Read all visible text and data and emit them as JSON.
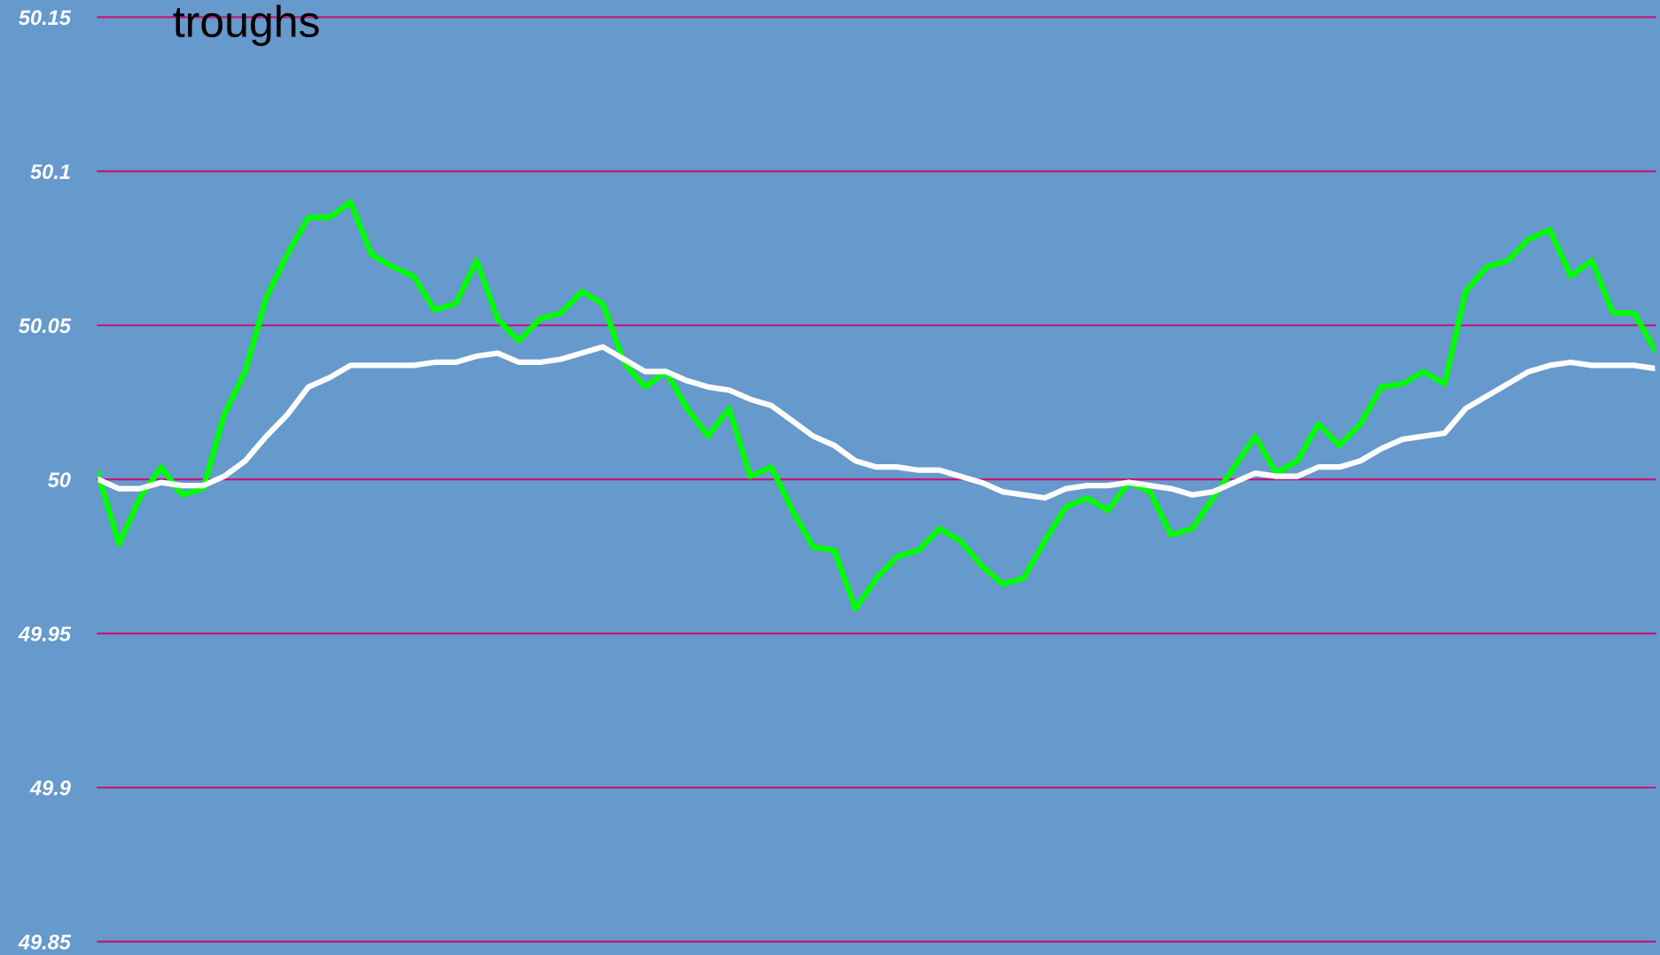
{
  "chart_data": {
    "type": "line",
    "categories": [
      null,
      null,
      null,
      null,
      null,
      null,
      null,
      null,
      null,
      null,
      null,
      null,
      null,
      null,
      null,
      null,
      null,
      null,
      null,
      null,
      null,
      null,
      null,
      null,
      null,
      null,
      null,
      null,
      null,
      null,
      null,
      null,
      null,
      null,
      null,
      null,
      null,
      null,
      null,
      null,
      null,
      null,
      null,
      null,
      null,
      null,
      null,
      null,
      null,
      null,
      null,
      null,
      null,
      null,
      null,
      null,
      null,
      null,
      null,
      null,
      null,
      null,
      null,
      null,
      null,
      null,
      null,
      null,
      null,
      null,
      null,
      null,
      null,
      null,
      null
    ],
    "series": [
      {
        "color": "#00ff00",
        "values": [
          50.002,
          49.979,
          49.994,
          50.004,
          49.995,
          49.997,
          50.021,
          50.035,
          50.059,
          50.073,
          50.085,
          50.085,
          50.09,
          50.073,
          50.069,
          50.066,
          50.055,
          50.057,
          50.071,
          50.052,
          50.045,
          50.052,
          50.054,
          50.061,
          50.057,
          50.038,
          50.03,
          50.035,
          50.023,
          50.014,
          50.023,
          50.001,
          50.004,
          49.99,
          49.978,
          49.977,
          49.958,
          49.968,
          49.975,
          49.977,
          49.984,
          49.98,
          49.972,
          49.966,
          49.968,
          49.98,
          49.991,
          49.994,
          49.99,
          49.999,
          49.996,
          49.982,
          49.984,
          49.994,
          50.004,
          50.014,
          50.002,
          50.006,
          50.018,
          50.011,
          50.018,
          50.03,
          50.031,
          50.035,
          50.031,
          50.061,
          50.069,
          50.071,
          50.078,
          50.081,
          50.066,
          50.071,
          50.054,
          50.054,
          50.042
        ]
      },
      {
        "color": "#ffffff",
        "values": [
          50.0,
          49.997,
          49.997,
          49.999,
          49.998,
          49.998,
          50.001,
          50.006,
          50.014,
          50.021,
          50.03,
          50.033,
          50.037,
          50.037,
          50.037,
          50.037,
          50.038,
          50.038,
          50.04,
          50.041,
          50.038,
          50.038,
          50.039,
          50.041,
          50.043,
          50.039,
          50.035,
          50.035,
          50.032,
          50.03,
          50.029,
          50.026,
          50.024,
          50.019,
          50.014,
          50.011,
          50.006,
          50.004,
          50.004,
          50.003,
          50.003,
          50.001,
          49.999,
          49.996,
          49.995,
          49.994,
          49.997,
          49.998,
          49.998,
          49.999,
          49.998,
          49.997,
          49.995,
          49.996,
          49.999,
          50.002,
          50.001,
          50.001,
          50.004,
          50.004,
          50.006,
          50.01,
          50.013,
          50.014,
          50.015,
          50.023,
          50.027,
          50.031,
          50.035,
          50.037,
          50.038,
          50.037,
          50.037,
          50.037,
          50.036
        ]
      }
    ],
    "ylim": [
      49.85,
      50.15
    ],
    "yticks": [
      {
        "value": 49.85,
        "label": "49.85"
      },
      {
        "value": 49.9,
        "label": "49.9"
      },
      {
        "value": 49.95,
        "label": "49.95"
      },
      {
        "value": 50,
        "label": "50"
      },
      {
        "value": 50.05,
        "label": "50.05"
      },
      {
        "value": 50.1,
        "label": "50.1"
      },
      {
        "value": 50.15,
        "label": "50.15"
      }
    ],
    "grid": "y",
    "tick_labels": "y",
    "annotations": [
      "troughs"
    ]
  }
}
